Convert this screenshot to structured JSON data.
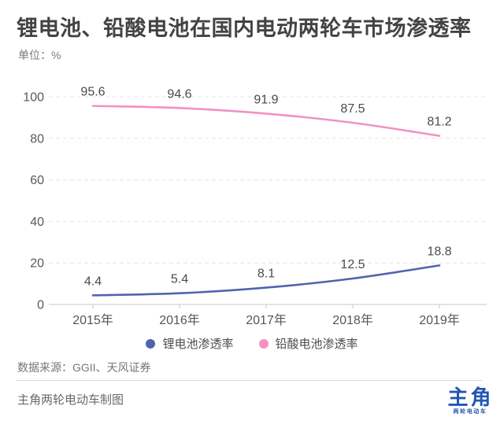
{
  "title": "锂电池、铅酸电池在国内电动两轮车市场渗透率",
  "unit_label": "单位：%",
  "chart_data": {
    "type": "line",
    "title": "锂电池、铅酸电池在国内电动两轮车市场渗透率",
    "unit": "%",
    "categories": [
      "2015年",
      "2016年",
      "2017年",
      "2018年",
      "2019年"
    ],
    "series": [
      {
        "name": "锂电池渗透率",
        "color": "#5064ae",
        "values": [
          4.4,
          5.4,
          8.1,
          12.5,
          18.8
        ]
      },
      {
        "name": "铅酸电池渗透率",
        "color": "#f292c2",
        "values": [
          95.6,
          94.6,
          91.9,
          87.5,
          81.2
        ]
      }
    ],
    "ylim": [
      0,
      100
    ],
    "yticks": [
      0,
      20,
      40,
      60,
      80,
      100
    ],
    "grid": "horizontal-dashed",
    "legend_position": "bottom",
    "data_labels": true
  },
  "source": "数据来源：GGII、天风证券",
  "footer": {
    "credit": "主角两轮电动车制图",
    "logo_main": "主角",
    "logo_sub": "两轮电动车",
    "logo_color": "#2456b2"
  }
}
